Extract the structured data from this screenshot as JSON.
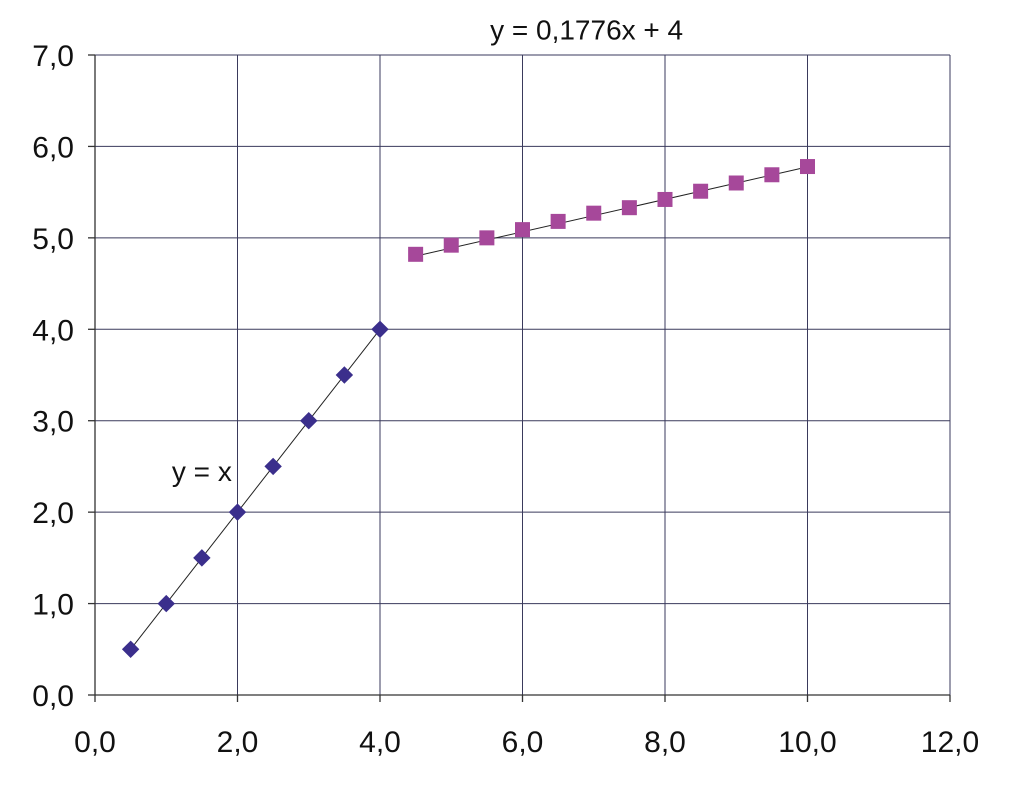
{
  "chart_data": {
    "type": "scatter",
    "xlim": [
      0,
      12
    ],
    "ylim": [
      0,
      7
    ],
    "x_ticks": [
      "0,0",
      "2,0",
      "4,0",
      "6,0",
      "8,0",
      "10,0",
      "12,0"
    ],
    "y_ticks": [
      "0,0",
      "1,0",
      "2,0",
      "3,0",
      "4,0",
      "5,0",
      "6,0",
      "7,0"
    ],
    "grid": true,
    "series": [
      {
        "marker": "diamond",
        "color": "#3b2f8c",
        "x": [
          0.5,
          1.0,
          1.5,
          2.0,
          2.5,
          3.0,
          3.5,
          4.0
        ],
        "y": [
          0.5,
          1.0,
          1.5,
          2.0,
          2.5,
          3.0,
          3.5,
          4.0
        ],
        "trendline": {
          "x": [
            0.5,
            4.0
          ],
          "y": [
            0.5,
            4.0
          ]
        }
      },
      {
        "marker": "square",
        "color": "#a6489a",
        "x": [
          4.5,
          5.0,
          5.5,
          6.0,
          6.5,
          7.0,
          7.5,
          8.0,
          8.5,
          9.0,
          9.5,
          10.0
        ],
        "y": [
          4.82,
          4.92,
          5.0,
          5.09,
          5.18,
          5.27,
          5.33,
          5.42,
          5.51,
          5.6,
          5.69,
          5.78
        ],
        "trendline": {
          "x": [
            4.5,
            10.0
          ],
          "y": [
            4.8,
            5.776
          ]
        }
      }
    ],
    "annotations": [
      {
        "text": "y = x",
        "x": 1.5,
        "y": 2.45
      },
      {
        "text": "y = 0,1776x + 4",
        "x": 6.9,
        "y": 7.28
      }
    ]
  }
}
